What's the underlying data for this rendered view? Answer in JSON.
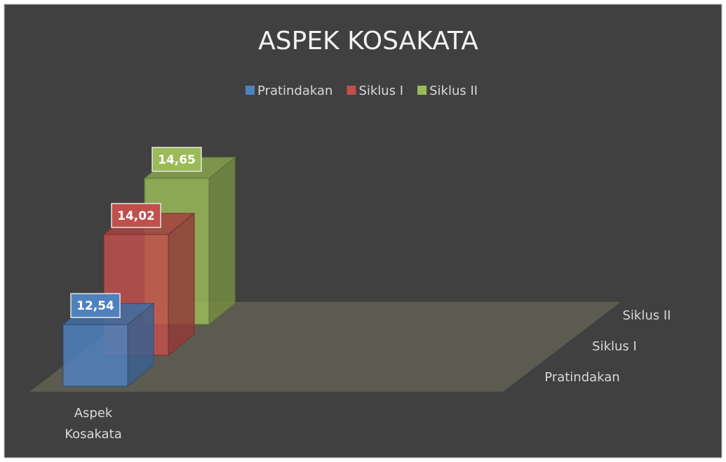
{
  "chart_data": {
    "type": "bar3d",
    "title": "ASPEK KOSAKATA",
    "categories": [
      "Aspek Kosakata"
    ],
    "series": [
      {
        "name": "Pratindakan",
        "color": "#4f81bd",
        "values": [
          12.54
        ],
        "value_labels": [
          "12,54"
        ]
      },
      {
        "name": "Siklus I",
        "color": "#c0504d",
        "values": [
          14.02
        ],
        "value_labels": [
          "14,02"
        ]
      },
      {
        "name": "Siklus II",
        "color": "#9bbb59",
        "values": [
          14.65
        ],
        "value_labels": [
          "14,65"
        ]
      }
    ],
    "ylim": [
      11,
      15
    ],
    "legend": "top"
  }
}
